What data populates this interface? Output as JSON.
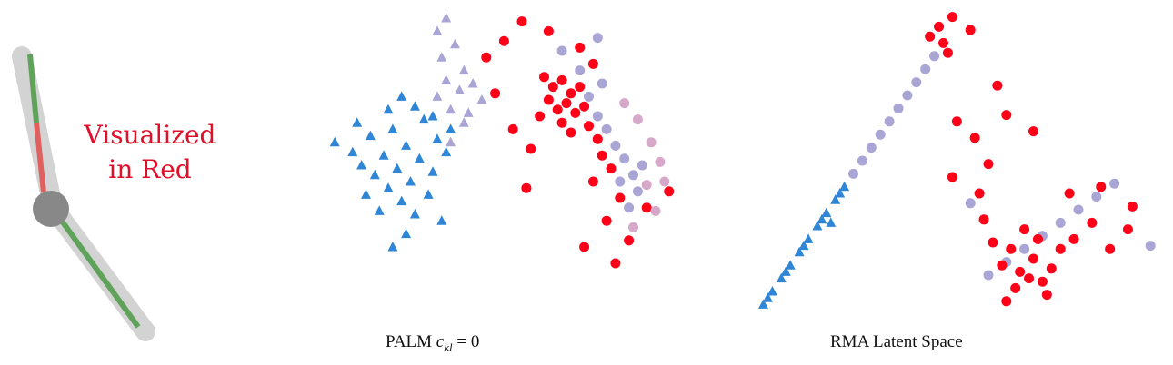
{
  "colors": {
    "red": "#ff0018",
    "blue": "#2f86d6",
    "lavender": "#a9a6d6",
    "pink": "#d7a8c9",
    "limb_gray": "#d3d3d3",
    "limb_green": "#5fa35a",
    "limb_red": "#e06060",
    "joint": "#888888",
    "annotation": "#e0102a"
  },
  "annotation": {
    "line1": "Visualized",
    "line2": "in Red"
  },
  "panels": {
    "palm_prefix": "PALM ",
    "palm_symbol": "c",
    "palm_sub": "kl",
    "palm_suffix": " = 0",
    "rma": "RMA Latent Space"
  },
  "chart_data": [
    {
      "type": "scatter",
      "title": "PALM c_kl = 0",
      "xlabel": "",
      "ylabel": "",
      "grid": false,
      "axes_visible": false,
      "series": [
        {
          "marker": "triangle",
          "color": "blue",
          "points": [
            [
              -3.2,
              1.2
            ],
            [
              -2.8,
              0.9
            ],
            [
              -2.6,
              0.5
            ],
            [
              -2.4,
              1.4
            ],
            [
              -2.3,
              0.2
            ],
            [
              -2.1,
              0.8
            ],
            [
              -2.0,
              -0.2
            ],
            [
              -1.9,
              1.6
            ],
            [
              -1.8,
              0.4
            ],
            [
              -1.7,
              -0.6
            ],
            [
              -1.6,
              1.1
            ],
            [
              -1.5,
              0.0
            ],
            [
              -1.4,
              -1.0
            ],
            [
              -1.3,
              0.7
            ],
            [
              -1.2,
              1.9
            ],
            [
              -1.1,
              -0.4
            ],
            [
              -1.0,
              0.3
            ],
            [
              -0.9,
              1.3
            ],
            [
              -0.8,
              -1.2
            ],
            [
              -0.7,
              0.9
            ],
            [
              -2.5,
              -0.4
            ],
            [
              -2.2,
              -0.9
            ],
            [
              -1.6,
              -1.6
            ],
            [
              -1.9,
              -2.0
            ],
            [
              -1.4,
              2.3
            ],
            [
              -1.0,
              2.0
            ],
            [
              -0.6,
              1.6
            ],
            [
              -2.7,
              1.8
            ],
            [
              -2.0,
              2.2
            ],
            [
              -1.7,
              2.6
            ]
          ]
        },
        {
          "marker": "triangle",
          "color": "lavender",
          "points": [
            [
              -0.9,
              2.6
            ],
            [
              -0.6,
              2.2
            ],
            [
              -0.4,
              2.8
            ],
            [
              -0.2,
              2.1
            ],
            [
              -0.7,
              3.1
            ],
            [
              -0.3,
              3.4
            ],
            [
              -0.8,
              3.8
            ],
            [
              -0.5,
              4.2
            ],
            [
              -0.1,
              3.0
            ],
            [
              0.1,
              2.5
            ],
            [
              -0.3,
              1.8
            ],
            [
              -0.6,
              1.2
            ],
            [
              -0.9,
              4.6
            ],
            [
              -0.7,
              5.0
            ]
          ]
        },
        {
          "marker": "circle",
          "color": "red",
          "points": [
            [
              1.5,
              3.2
            ],
            [
              1.7,
              2.9
            ],
            [
              1.9,
              3.1
            ],
            [
              2.1,
              2.7
            ],
            [
              2.3,
              2.9
            ],
            [
              1.6,
              2.5
            ],
            [
              1.8,
              2.2
            ],
            [
              2.0,
              2.4
            ],
            [
              2.2,
              2.1
            ],
            [
              2.4,
              2.3
            ],
            [
              1.4,
              2.0
            ],
            [
              1.9,
              1.8
            ],
            [
              2.1,
              1.5
            ],
            [
              2.5,
              1.7
            ],
            [
              2.7,
              1.3
            ],
            [
              2.8,
              0.8
            ],
            [
              3.0,
              0.4
            ],
            [
              2.6,
              0.0
            ],
            [
              3.2,
              -0.5
            ],
            [
              2.9,
              -1.2
            ],
            [
              1.2,
              1.0
            ],
            [
              0.8,
              1.6
            ],
            [
              0.4,
              2.7
            ],
            [
              0.2,
              3.8
            ],
            [
              0.6,
              4.3
            ],
            [
              1.0,
              4.9
            ],
            [
              1.6,
              4.6
            ],
            [
              3.4,
              -1.8
            ],
            [
              3.8,
              -0.8
            ],
            [
              4.3,
              -0.3
            ],
            [
              1.1,
              -0.2
            ],
            [
              2.4,
              -2.0
            ],
            [
              3.1,
              -2.5
            ],
            [
              2.3,
              4.1
            ],
            [
              2.6,
              3.6
            ]
          ]
        },
        {
          "marker": "circle",
          "color": "lavender",
          "points": [
            [
              2.5,
              2.6
            ],
            [
              2.7,
              2.0
            ],
            [
              2.9,
              1.6
            ],
            [
              3.1,
              1.1
            ],
            [
              3.3,
              0.7
            ],
            [
              3.5,
              0.2
            ],
            [
              3.6,
              -0.3
            ],
            [
              3.4,
              -0.8
            ],
            [
              3.7,
              0.5
            ],
            [
              3.2,
              0.0
            ],
            [
              2.3,
              3.4
            ],
            [
              2.8,
              3.0
            ],
            [
              1.9,
              4.0
            ],
            [
              2.7,
              4.4
            ]
          ]
        },
        {
          "marker": "circle",
          "color": "pink",
          "points": [
            [
              3.6,
              1.9
            ],
            [
              3.9,
              1.2
            ],
            [
              4.1,
              0.6
            ],
            [
              3.8,
              -0.1
            ],
            [
              4.0,
              -0.9
            ],
            [
              3.5,
              -1.4
            ],
            [
              3.3,
              2.4
            ],
            [
              4.2,
              0.0
            ]
          ]
        }
      ]
    },
    {
      "type": "scatter",
      "title": "RMA Latent Space",
      "xlabel": "",
      "ylabel": "",
      "grid": false,
      "axes_visible": false,
      "series": [
        {
          "marker": "triangle",
          "color": "blue",
          "points": [
            [
              -4.0,
              -3.9
            ],
            [
              -3.8,
              -3.5
            ],
            [
              -3.6,
              -3.1
            ],
            [
              -3.4,
              -2.7
            ],
            [
              -3.2,
              -2.3
            ],
            [
              -3.0,
              -1.9
            ],
            [
              -2.8,
              -1.5
            ],
            [
              -2.6,
              -1.1
            ],
            [
              -2.4,
              -0.7
            ],
            [
              -2.2,
              -0.3
            ],
            [
              -3.9,
              -3.7
            ],
            [
              -3.5,
              -2.9
            ],
            [
              -3.1,
              -2.1
            ],
            [
              -2.7,
              -1.3
            ],
            [
              -2.3,
              -0.5
            ],
            [
              -2.5,
              -1.4
            ]
          ]
        },
        {
          "marker": "circle",
          "color": "lavender",
          "points": [
            [
              -2.0,
              0.1
            ],
            [
              -1.8,
              0.5
            ],
            [
              -1.6,
              0.9
            ],
            [
              -1.4,
              1.3
            ],
            [
              -1.2,
              1.7
            ],
            [
              -1.0,
              2.1
            ],
            [
              -0.8,
              2.5
            ],
            [
              -0.6,
              2.9
            ],
            [
              -0.4,
              3.3
            ],
            [
              -0.2,
              3.7
            ],
            [
              1.0,
              -3.0
            ],
            [
              1.4,
              -2.6
            ],
            [
              1.8,
              -2.2
            ],
            [
              2.2,
              -1.8
            ],
            [
              2.6,
              -1.4
            ],
            [
              3.0,
              -1.0
            ],
            [
              3.4,
              -0.6
            ],
            [
              3.8,
              -0.2
            ],
            [
              4.6,
              -2.1
            ],
            [
              0.6,
              -0.8
            ]
          ]
        },
        {
          "marker": "circle",
          "color": "red",
          "points": [
            [
              -0.1,
              4.6
            ],
            [
              0.0,
              4.1
            ],
            [
              0.2,
              4.9
            ],
            [
              -0.3,
              4.3
            ],
            [
              0.1,
              3.8
            ],
            [
              0.6,
              4.5
            ],
            [
              1.2,
              2.8
            ],
            [
              0.3,
              1.7
            ],
            [
              0.7,
              1.2
            ],
            [
              1.4,
              1.9
            ],
            [
              2.0,
              1.4
            ],
            [
              0.2,
              0.0
            ],
            [
              0.8,
              -0.5
            ],
            [
              1.5,
              -2.2
            ],
            [
              1.7,
              -2.9
            ],
            [
              1.9,
              -3.1
            ],
            [
              2.0,
              -2.5
            ],
            [
              2.2,
              -3.2
            ],
            [
              1.6,
              -3.4
            ],
            [
              1.3,
              -2.7
            ],
            [
              2.4,
              -2.8
            ],
            [
              2.6,
              -2.2
            ],
            [
              2.1,
              -1.9
            ],
            [
              1.8,
              -1.6
            ],
            [
              1.1,
              -2.0
            ],
            [
              0.9,
              -1.3
            ],
            [
              2.9,
              -1.9
            ],
            [
              3.3,
              -1.4
            ],
            [
              3.7,
              -2.2
            ],
            [
              4.1,
              -1.6
            ],
            [
              3.5,
              -0.3
            ],
            [
              4.2,
              -0.9
            ],
            [
              1.4,
              -3.8
            ],
            [
              2.3,
              -3.6
            ],
            [
              2.8,
              -0.5
            ],
            [
              1.0,
              0.4
            ]
          ]
        }
      ]
    }
  ]
}
